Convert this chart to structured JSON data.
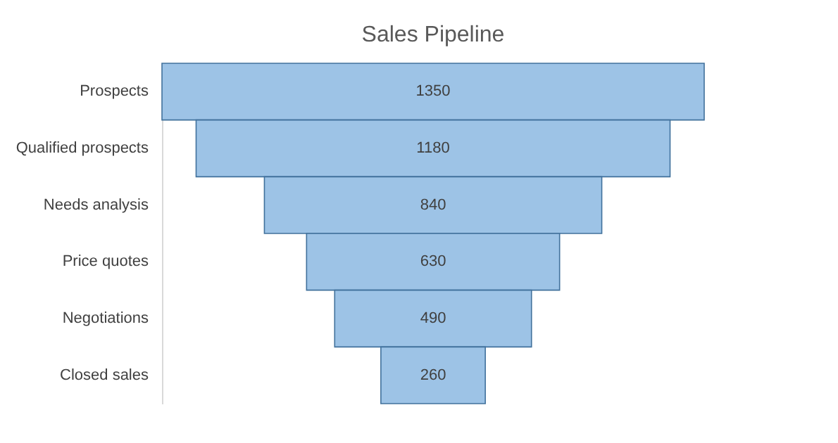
{
  "chart_data": {
    "type": "other",
    "title": "Sales Pipeline",
    "categories": [
      "Prospects",
      "Qualified prospects",
      "Needs analysis",
      "Price quotes",
      "Negotiations",
      "Closed sales"
    ],
    "values": [
      1350,
      1180,
      840,
      630,
      490,
      260
    ],
    "color": "#9dc3e6",
    "data_labels": true
  }
}
